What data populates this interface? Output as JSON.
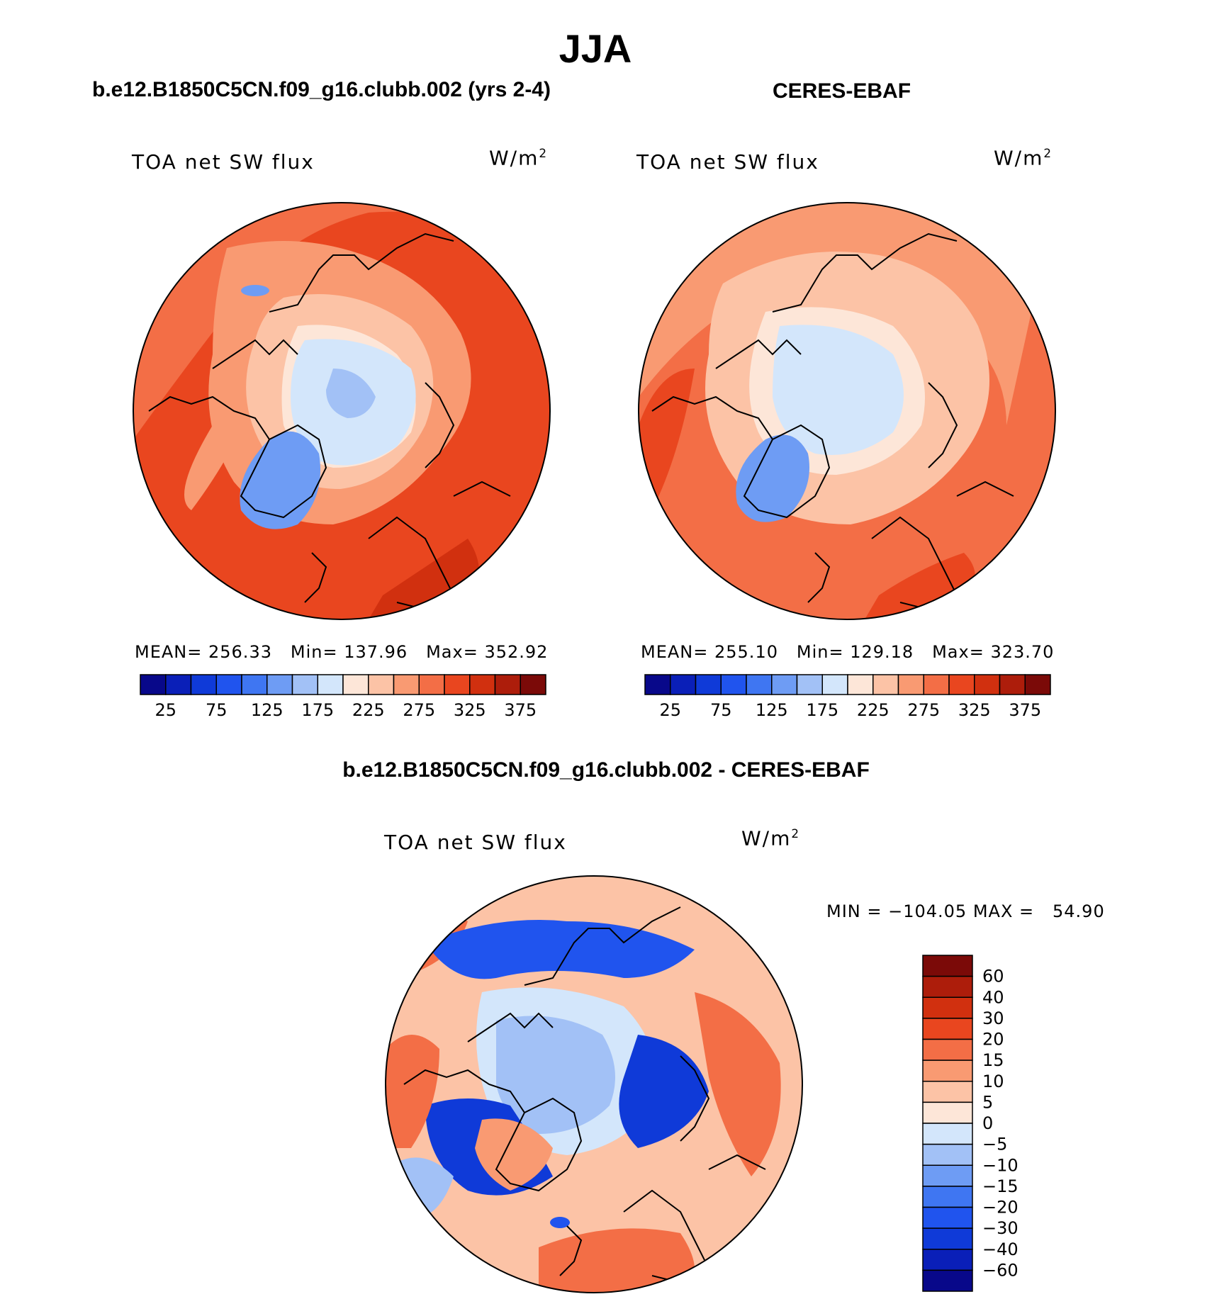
{
  "title": "JJA",
  "panels": [
    {
      "heading": "b.e12.B1850C5CN.f09_g16.clubb.002 (yrs 2-4)",
      "variable": "TOA net SW flux",
      "units": "W/m",
      "units_power": "2",
      "stats": {
        "mean_label": "MEAN=",
        "mean": "256.33",
        "min_label": "Min=",
        "min": "137.96",
        "max_label": "Max=",
        "max": "352.92"
      }
    },
    {
      "heading": "CERES-EBAF",
      "variable": "TOA net SW flux",
      "units": "W/m",
      "units_power": "2",
      "stats": {
        "mean_label": "MEAN=",
        "mean": "255.10",
        "min_label": "Min=",
        "min": "129.18",
        "max_label": "Max=",
        "max": "323.70"
      }
    },
    {
      "heading": "b.e12.B1850C5CN.f09_g16.clubb.002 - CERES-EBAF",
      "variable": "TOA net SW flux",
      "units": "W/m",
      "units_power": "2",
      "stats": {
        "text": "MIN = −104.05 MAX =   54.90"
      }
    }
  ],
  "chart_data": [
    {
      "type": "heatmap",
      "projection": "north-polar-stereographic",
      "title": "b.e12.B1850C5CN.f09_g16.clubb.002 (yrs 2-4)",
      "variable": "TOA net SW flux",
      "units": "W/m2",
      "mean": 256.33,
      "min": 137.96,
      "max": 352.92,
      "colorbar": {
        "orientation": "horizontal",
        "levels": [
          25,
          50,
          75,
          100,
          125,
          150,
          175,
          200,
          225,
          250,
          275,
          300,
          325,
          350,
          375
        ],
        "tick_labels": [
          "25",
          "75",
          "125",
          "175",
          "225",
          "275",
          "325",
          "375"
        ],
        "colors": [
          "#08088a",
          "#0a1fb8",
          "#0f3ad8",
          "#2054ee",
          "#3f76f2",
          "#6e9cf4",
          "#a2c1f6",
          "#d3e6fb",
          "#fde6d8",
          "#fcc3a6",
          "#f99a72",
          "#f36e46",
          "#e9461f",
          "#d1300f",
          "#ad1d0b",
          "#7b0a08"
        ]
      }
    },
    {
      "type": "heatmap",
      "projection": "north-polar-stereographic",
      "title": "CERES-EBAF",
      "variable": "TOA net SW flux",
      "units": "W/m2",
      "mean": 255.1,
      "min": 129.18,
      "max": 323.7,
      "colorbar": {
        "orientation": "horizontal",
        "levels": [
          25,
          50,
          75,
          100,
          125,
          150,
          175,
          200,
          225,
          250,
          275,
          300,
          325,
          350,
          375
        ],
        "tick_labels": [
          "25",
          "75",
          "125",
          "175",
          "225",
          "275",
          "325",
          "375"
        ],
        "colors": [
          "#08088a",
          "#0a1fb8",
          "#0f3ad8",
          "#2054ee",
          "#3f76f2",
          "#6e9cf4",
          "#a2c1f6",
          "#d3e6fb",
          "#fde6d8",
          "#fcc3a6",
          "#f99a72",
          "#f36e46",
          "#e9461f",
          "#d1300f",
          "#ad1d0b",
          "#7b0a08"
        ]
      }
    },
    {
      "type": "heatmap",
      "projection": "north-polar-stereographic",
      "title": "b.e12.B1850C5CN.f09_g16.clubb.002 - CERES-EBAF",
      "variable": "TOA net SW flux",
      "units": "W/m2",
      "min": -104.05,
      "max": 54.9,
      "colorbar": {
        "orientation": "vertical",
        "levels": [
          60,
          40,
          30,
          20,
          15,
          10,
          5,
          0,
          -5,
          -10,
          -15,
          -20,
          -30,
          -40,
          -60
        ],
        "tick_labels": [
          "60",
          "40",
          "30",
          "20",
          "15",
          "10",
          "5",
          "0",
          "−5",
          "−10",
          "−15",
          "−20",
          "−30",
          "−40",
          "−60"
        ],
        "colors": [
          "#7b0a08",
          "#ad1d0b",
          "#d1300f",
          "#e9461f",
          "#f36e46",
          "#f99a72",
          "#fcc3a6",
          "#fde6d8",
          "#d3e6fb",
          "#a2c1f6",
          "#6e9cf4",
          "#3f76f2",
          "#2054ee",
          "#0f3ad8",
          "#0a1fb8",
          "#08088a"
        ]
      }
    }
  ]
}
